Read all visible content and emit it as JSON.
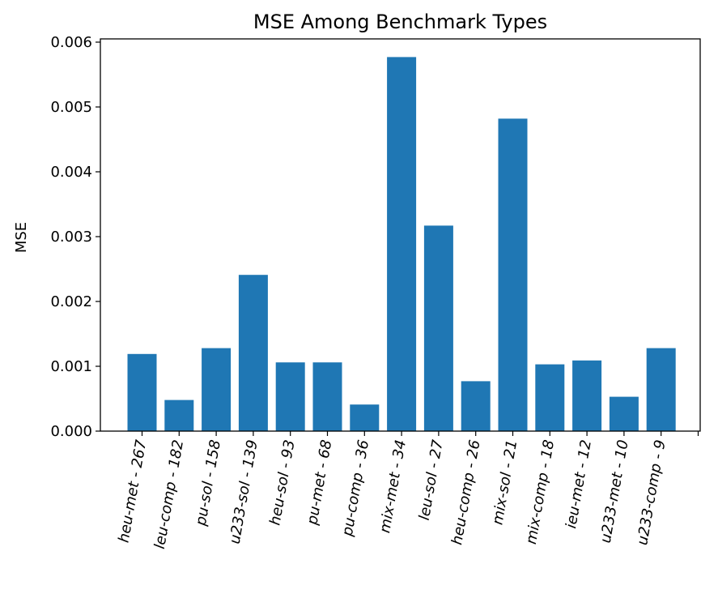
{
  "chart_data": {
    "type": "bar",
    "title": "MSE Among Benchmark Types",
    "xlabel": "",
    "ylabel": "MSE",
    "categories": [
      "heu-met - 267",
      "leu-comp - 182",
      "pu-sol - 158",
      "u233-sol - 139",
      "heu-sol - 93",
      "pu-met - 68",
      "pu-comp - 36",
      "mix-met - 34",
      "leu-sol - 27",
      "heu-comp - 26",
      "mix-sol - 21",
      "mix-comp - 18",
      "ieu-met - 12",
      "u233-met - 10",
      "u233-comp - 9"
    ],
    "values": [
      0.00119,
      0.00048,
      0.00128,
      0.00241,
      0.00106,
      0.00106,
      0.00041,
      0.00577,
      0.00317,
      0.00077,
      0.00482,
      0.00103,
      0.00109,
      0.00053,
      0.00128
    ],
    "ylim": [
      0,
      0.00605
    ],
    "yticks": [
      "0.000",
      "0.001",
      "0.002",
      "0.003",
      "0.004",
      "0.005",
      "0.006"
    ],
    "ytick_values": [
      0,
      0.001,
      0.002,
      0.003,
      0.004,
      0.005,
      0.006
    ],
    "bar_color": "#1f77b4",
    "grid": false,
    "legend": "none"
  }
}
